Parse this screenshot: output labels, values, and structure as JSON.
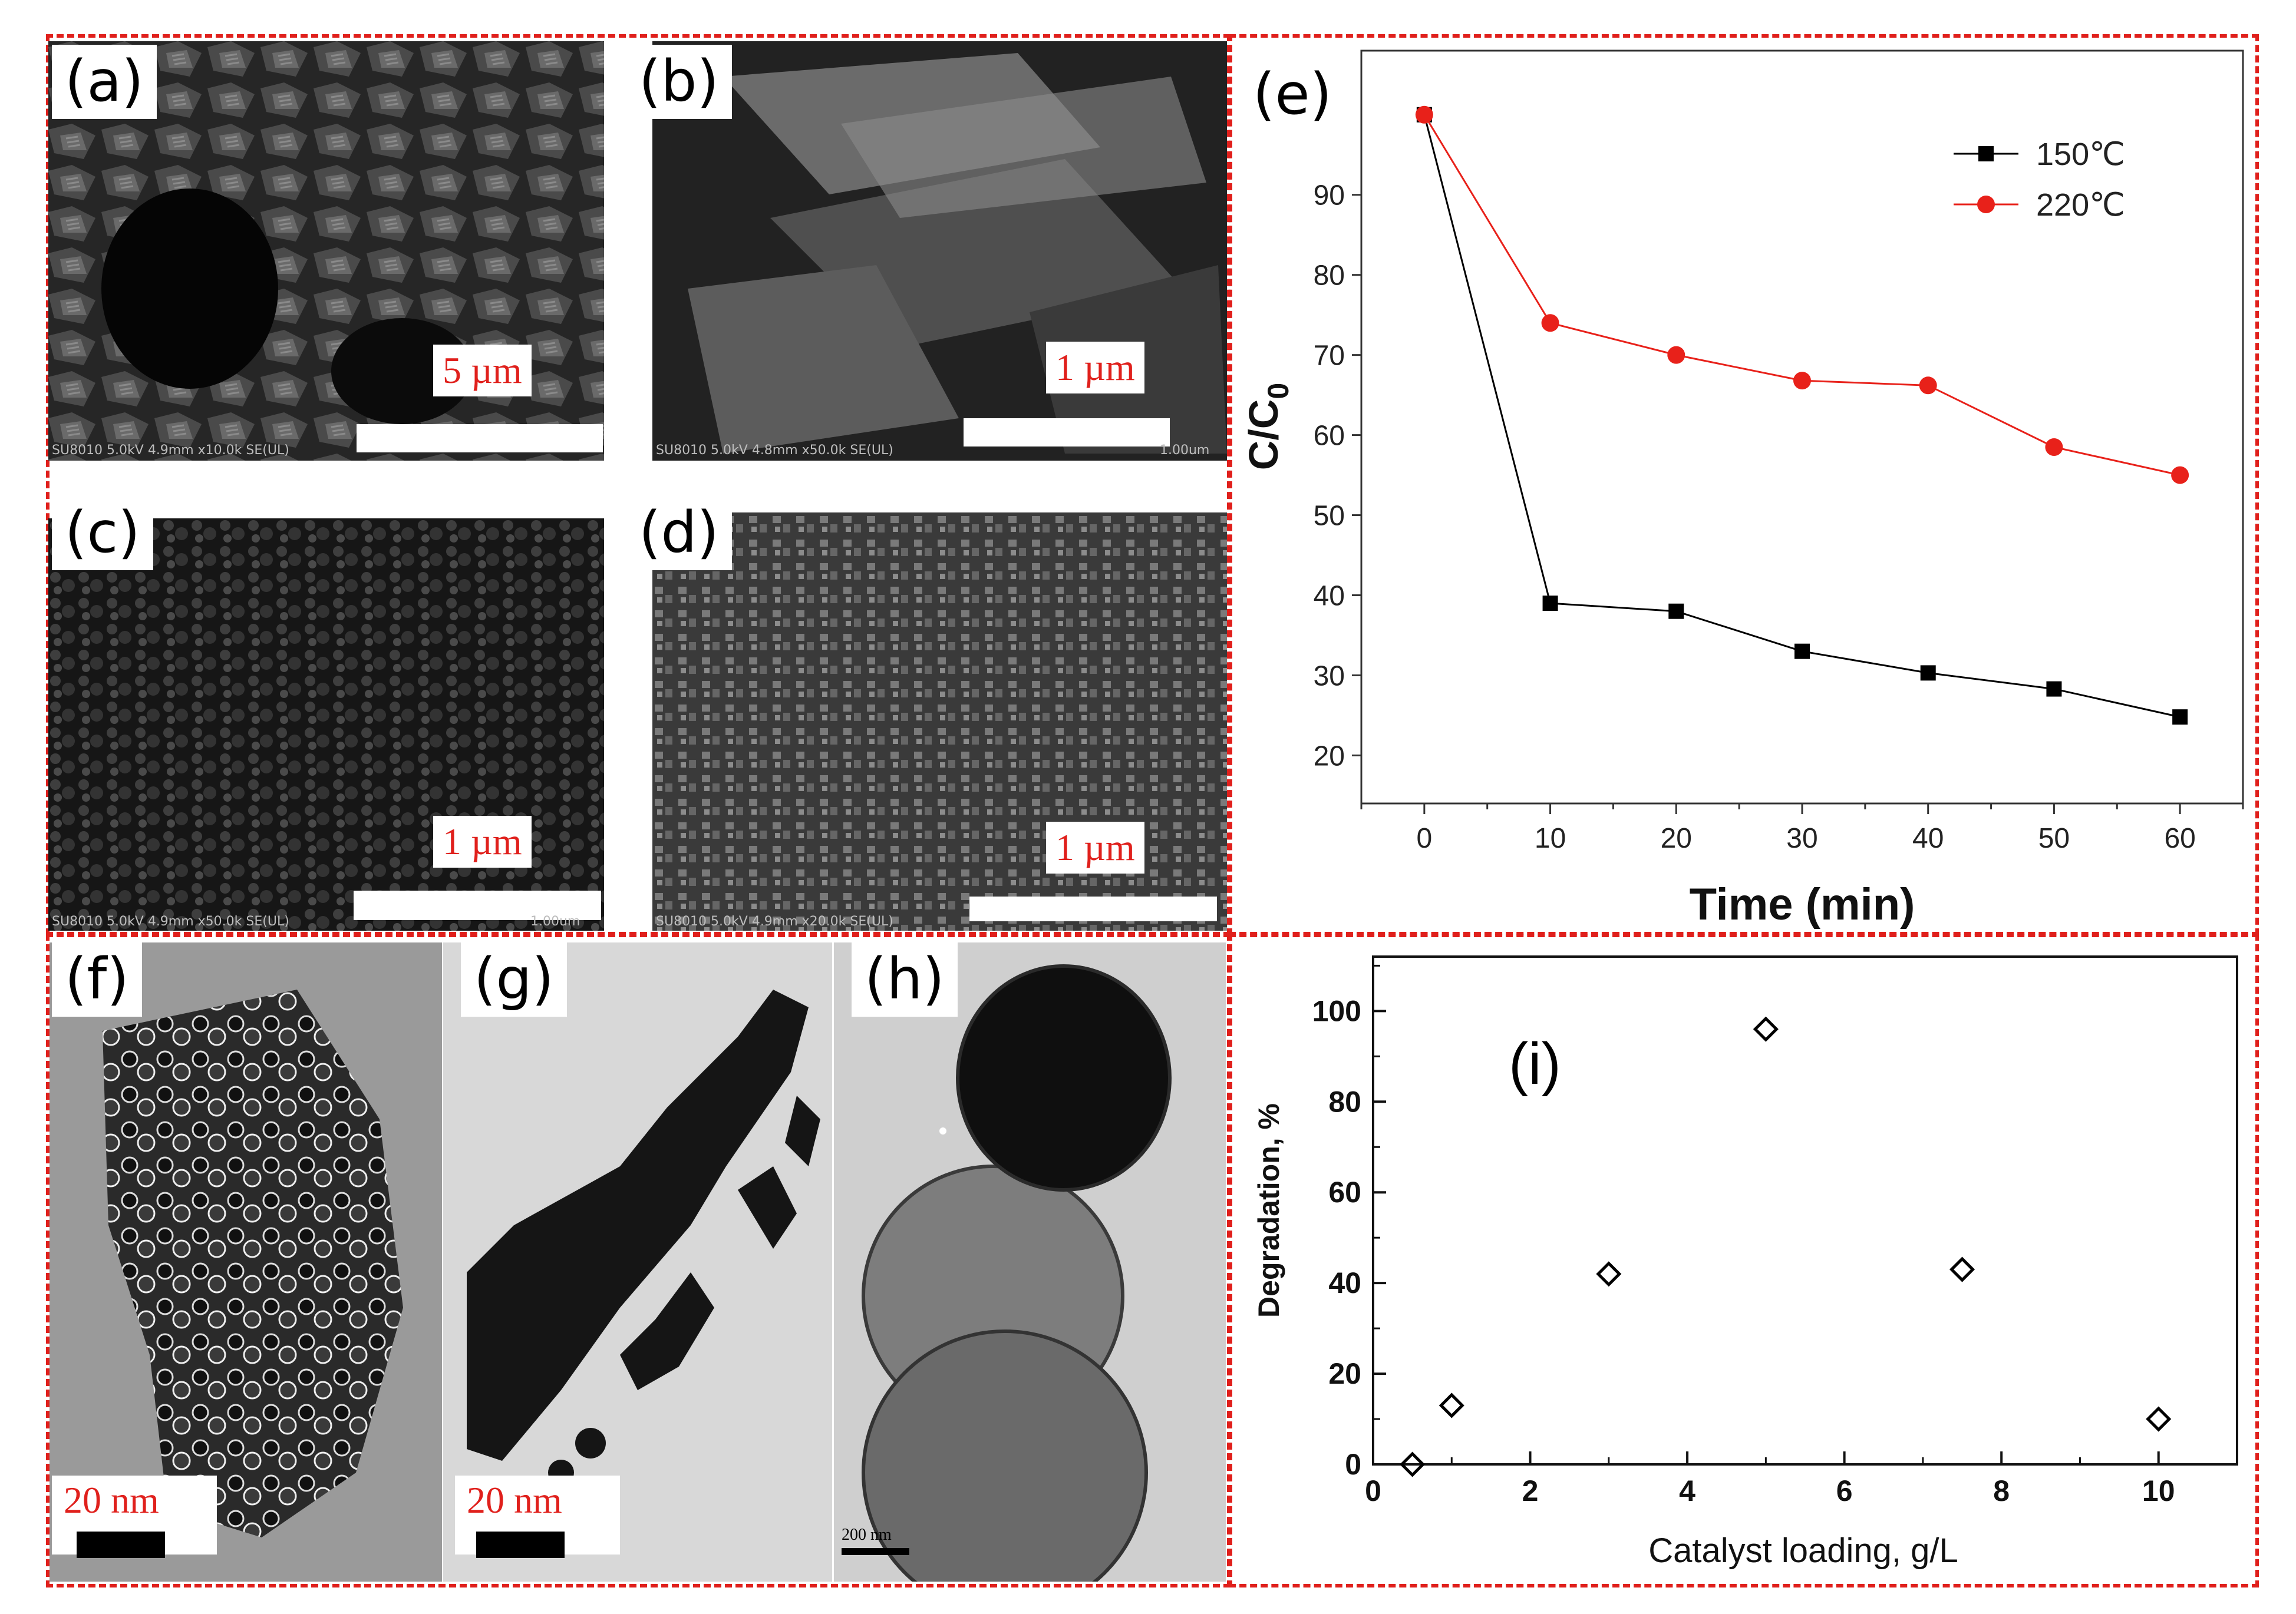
{
  "panels": {
    "a": {
      "label": "(a)",
      "scale": "5 µm",
      "info": "SU8010 5.0kV 4.9mm x10.0k SE(UL)"
    },
    "b": {
      "label": "(b)",
      "scale": "1 µm",
      "info": "SU8010 5.0kV 4.8mm x50.0k SE(UL)",
      "unit": "1.00um"
    },
    "c": {
      "label": "(c)",
      "scale": "1 µm",
      "info": "SU8010 5.0kV 4.9mm x50.0k SE(UL)",
      "unit": "1.00um"
    },
    "d": {
      "label": "(d)",
      "scale": "1 µm",
      "info": "SU8010 5.0kV 4.9mm x20.0k SE(UL)"
    },
    "f": {
      "label": "(f)",
      "scale": "20 nm"
    },
    "g": {
      "label": "(g)",
      "scale": "20 nm"
    },
    "h": {
      "label": "(h)",
      "scale": "200 nm"
    },
    "i": {
      "label": "(i)"
    },
    "e": {
      "label": "(e)"
    }
  },
  "colors": {
    "frame": "#e0201c",
    "series_150": "#000000",
    "series_220": "#e8211a"
  },
  "chart_data": [
    {
      "id": "e",
      "type": "line",
      "xlabel": "Time (min)",
      "ylabel_main": "C/C",
      "ylabel_sub": "0",
      "x": [
        0,
        10,
        20,
        30,
        40,
        50,
        60
      ],
      "xlim": [
        -5,
        65
      ],
      "ylim": [
        14,
        108
      ],
      "xticks": [
        "0",
        "10",
        "20",
        "30",
        "40",
        "50",
        "60"
      ],
      "yticks": [
        "20",
        "30",
        "40",
        "50",
        "60",
        "70",
        "80",
        "90"
      ],
      "legend_position": "top-right",
      "grid": false,
      "series": [
        {
          "name": "150℃",
          "marker": "square",
          "color": "#000000",
          "values": [
            100,
            39,
            38,
            33,
            30.3,
            28.3,
            24.8
          ]
        },
        {
          "name": "220℃",
          "marker": "circle",
          "color": "#e8211a",
          "values": [
            100,
            74,
            70,
            66.8,
            66.2,
            58.5,
            55
          ]
        }
      ]
    },
    {
      "id": "i",
      "type": "scatter",
      "xlabel": "Catalyst loading, g/L",
      "ylabel": "Degradation, %",
      "xlim": [
        0,
        11
      ],
      "ylim": [
        0,
        112
      ],
      "xticks": [
        "0",
        "2",
        "4",
        "6",
        "8",
        "10"
      ],
      "yticks": [
        "0",
        "20",
        "40",
        "60",
        "80",
        "100"
      ],
      "grid": false,
      "marker": "diamond",
      "points": [
        {
          "x": 0.5,
          "y": 0
        },
        {
          "x": 1,
          "y": 13
        },
        {
          "x": 3,
          "y": 42
        },
        {
          "x": 5,
          "y": 96
        },
        {
          "x": 7.5,
          "y": 43
        },
        {
          "x": 10,
          "y": 10
        }
      ]
    }
  ]
}
